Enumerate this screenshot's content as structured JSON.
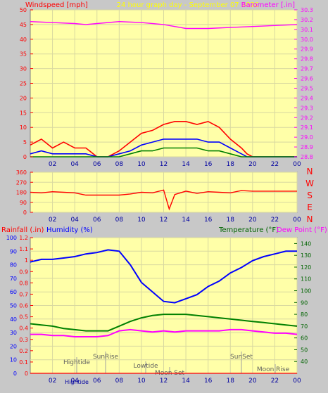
{
  "header": {
    "left_label": "Windspeed [mph]",
    "center_label": "24 hour graph day - September 07 2020",
    "right_label": "Barometer [.in]"
  },
  "colors": {
    "background": "#c8c8c8",
    "plot_bg": "#ffffa8",
    "grid": "#d8d8a0",
    "red": "#ff0000",
    "blue": "#0000ff",
    "green": "#008000",
    "magenta": "#ff00ff",
    "darkgreen": "#006400",
    "axis_text": "#ff00ff"
  },
  "x_tick_labels": [
    "02",
    "04",
    "06",
    "08",
    "10",
    "12",
    "14",
    "16",
    "18",
    "20",
    "22",
    "00"
  ],
  "direction_labels": [
    "N",
    "W",
    "S",
    "E",
    "N"
  ],
  "bottom_header": {
    "rain_label": "Rainfall (.in)",
    "humidity_label": "Humidity (%)",
    "temp_label": "Temperature (°F)",
    "dew_label": "Dew Point (°F)"
  },
  "annotations": {
    "hightide": "Hightide",
    "sunrise": "SunRise",
    "lowtide": "Lowtide",
    "moonset": "Moon Set",
    "sunset": "SunSet",
    "moonrise": "Moon Rise",
    "hightide2": "Hightide"
  },
  "chart_data": [
    {
      "type": "line",
      "ylabel_left": "Windspeed [mph]",
      "ylabel_right": "Barometer [.in]",
      "xlim": [
        0,
        24
      ],
      "ylim_left": [
        0,
        50
      ],
      "yticks_left": [
        0,
        5,
        10,
        15,
        20,
        25,
        30,
        35,
        40,
        45,
        50
      ],
      "ylim_right": [
        28.8,
        30.3
      ],
      "yticks_right": [
        28.8,
        28.9,
        29,
        29.1,
        29.2,
        29.3,
        29.4,
        29.5,
        29.6,
        29.7,
        29.8,
        29.9,
        30,
        30.1,
        30.2,
        30.3
      ],
      "series": [
        {
          "name": "Barometer",
          "axis": "right",
          "color": "#ff00ff",
          "x": [
            0,
            2,
            4,
            5,
            6,
            8,
            10,
            12,
            13,
            14,
            15,
            16,
            18,
            20,
            22,
            24
          ],
          "y": [
            30.18,
            30.17,
            30.16,
            30.15,
            30.16,
            30.18,
            30.17,
            30.15,
            30.13,
            30.11,
            30.11,
            30.11,
            30.12,
            30.13,
            30.14,
            30.15
          ]
        },
        {
          "name": "Wind gust",
          "axis": "left",
          "color": "#ff0000",
          "x": [
            0,
            1,
            2,
            3,
            4,
            5,
            6,
            7,
            8,
            9,
            10,
            11,
            12,
            13,
            14,
            15,
            16,
            17,
            18,
            19,
            19.5,
            20,
            22,
            24
          ],
          "y": [
            4,
            6,
            3,
            5,
            3,
            3,
            0,
            0,
            2,
            5,
            8,
            9,
            11,
            12,
            12,
            11,
            12,
            10,
            6,
            3,
            1,
            0,
            0,
            0
          ]
        },
        {
          "name": "Wind speed",
          "axis": "left",
          "color": "#0000ff",
          "x": [
            0,
            1,
            2,
            3,
            4,
            5,
            6,
            7,
            8,
            9,
            10,
            11,
            12,
            13,
            14,
            15,
            16,
            17,
            18,
            19,
            19.5,
            20,
            22,
            24
          ],
          "y": [
            1,
            2,
            1,
            1,
            1,
            1,
            0,
            0,
            1,
            2,
            4,
            5,
            6,
            6,
            6,
            6,
            5,
            5,
            3,
            1,
            0,
            0,
            0,
            0
          ]
        },
        {
          "name": "Wind low",
          "axis": "left",
          "color": "#008000",
          "x": [
            0,
            6,
            8,
            9,
            10,
            11,
            12,
            13,
            14,
            15,
            16,
            17,
            18,
            19,
            20,
            24
          ],
          "y": [
            0,
            0,
            0,
            1,
            2,
            2,
            3,
            3,
            3,
            3,
            2,
            2,
            1,
            0,
            0,
            0
          ]
        }
      ]
    },
    {
      "type": "line",
      "ylim": [
        0,
        360
      ],
      "yticks": [
        0,
        90,
        180,
        270,
        360
      ],
      "xlim": [
        0,
        24
      ],
      "series": [
        {
          "name": "Wind direction",
          "color": "#ff0000",
          "x": [
            0,
            1,
            2,
            3,
            4,
            5,
            6,
            7,
            8,
            9,
            10,
            11,
            12,
            12.5,
            13,
            14,
            15,
            16,
            17,
            18,
            19,
            20,
            22,
            24
          ],
          "y": [
            180,
            175,
            185,
            180,
            175,
            155,
            155,
            155,
            155,
            165,
            180,
            175,
            200,
            30,
            160,
            190,
            170,
            185,
            180,
            175,
            195,
            190,
            190,
            190
          ]
        }
      ]
    },
    {
      "type": "line",
      "xlim": [
        0,
        24
      ],
      "ylim_rain": [
        0,
        1.2
      ],
      "yticks_rain": [
        0,
        0.1,
        0.2,
        0.3,
        0.4,
        0.5,
        0.6,
        0.7,
        0.8,
        0.9,
        1,
        1.1,
        1.2
      ],
      "ylim_humidity": [
        0,
        100
      ],
      "yticks_humidity": [
        0,
        10,
        20,
        30,
        40,
        50,
        60,
        70,
        80,
        90,
        100
      ],
      "ylim_temp": [
        30,
        145
      ],
      "yticks_temp": [
        40,
        50,
        60,
        70,
        80,
        90,
        100,
        110,
        120,
        130,
        140
      ],
      "series": [
        {
          "name": "Humidity",
          "axis": "humidity",
          "color": "#0000ff",
          "x": [
            0,
            1,
            2,
            3,
            4,
            5,
            6,
            7,
            8,
            9,
            10,
            11,
            12,
            13,
            14,
            15,
            16,
            17,
            18,
            19,
            20,
            21,
            22,
            23,
            24
          ],
          "y": [
            82,
            84,
            84,
            85,
            86,
            88,
            89,
            91,
            90,
            80,
            67,
            60,
            53,
            52,
            55,
            58,
            64,
            68,
            74,
            78,
            83,
            86,
            88,
            90,
            90
          ]
        },
        {
          "name": "Temperature",
          "axis": "temp",
          "color": "#008000",
          "x": [
            0,
            1,
            2,
            3,
            4,
            5,
            6,
            7,
            8,
            9,
            10,
            11,
            12,
            13,
            14,
            15,
            16,
            17,
            18,
            19,
            20,
            21,
            22,
            23,
            24
          ],
          "y": [
            72,
            71,
            70,
            68,
            67,
            66,
            66,
            66,
            70,
            74,
            77,
            79,
            80,
            80,
            80,
            79,
            78,
            77,
            76,
            75,
            74,
            73,
            72,
            71,
            70
          ]
        },
        {
          "name": "Dew Point",
          "axis": "temp",
          "color": "#ff00ff",
          "x": [
            0,
            1,
            2,
            3,
            4,
            5,
            6,
            7,
            8,
            9,
            10,
            11,
            12,
            13,
            14,
            15,
            16,
            17,
            18,
            19,
            20,
            21,
            22,
            23,
            24
          ],
          "y": [
            63,
            63,
            62,
            62,
            61,
            61,
            61,
            62,
            66,
            67,
            66,
            65,
            66,
            65,
            66,
            66,
            66,
            66,
            67,
            67,
            66,
            65,
            64,
            64,
            63
          ]
        },
        {
          "name": "Rainfall",
          "axis": "rain",
          "color": "#ff0000",
          "x": [
            0,
            24
          ],
          "y": [
            0,
            0
          ]
        }
      ]
    }
  ]
}
